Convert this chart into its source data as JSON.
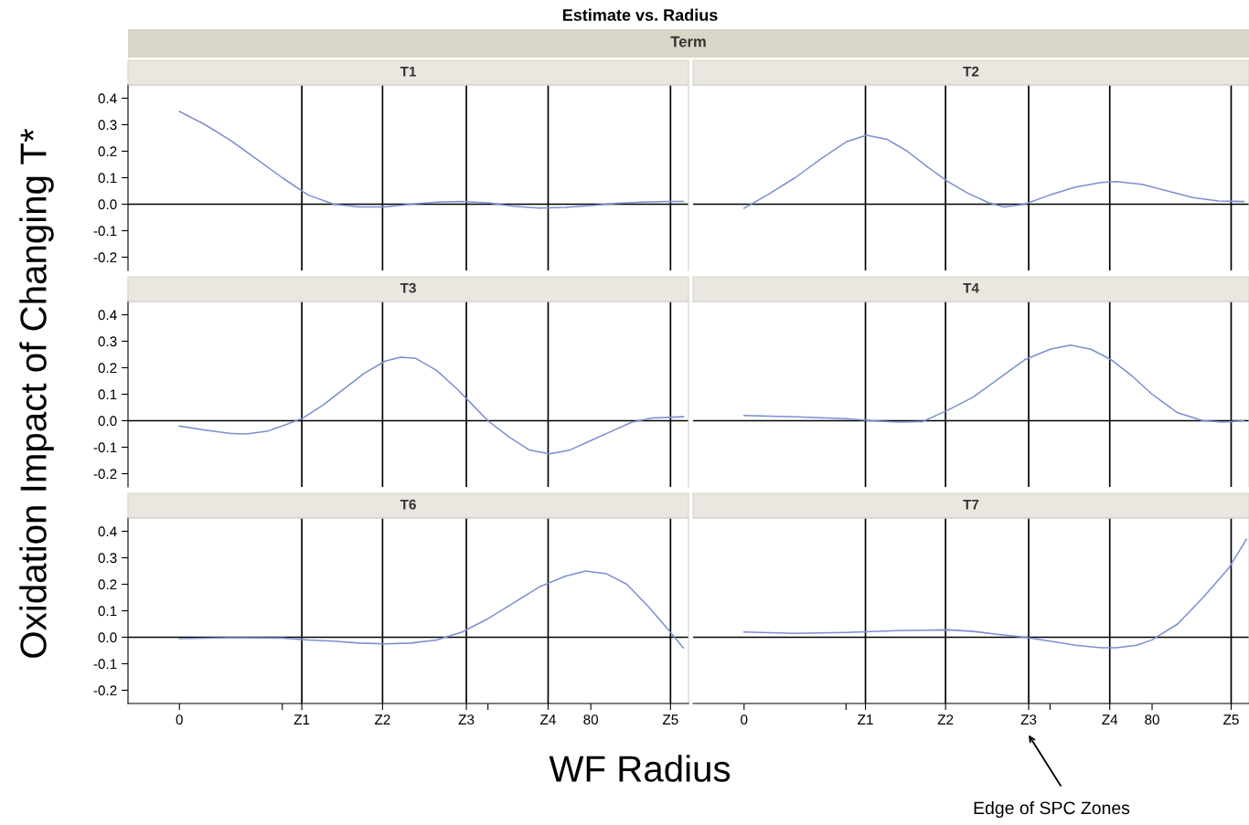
{
  "chart_data": [
    {
      "type": "line",
      "title": "T1",
      "ylabel": "Oxidation Impact of Changing T*",
      "annotations": [
        "Estimate vs. Radius",
        "Term"
      ],
      "tick_labels": "y",
      "x": [
        0,
        5,
        10,
        15,
        20,
        25,
        30,
        35,
        40,
        45,
        50,
        55,
        60,
        65,
        70,
        75,
        80,
        85,
        90,
        95,
        98
      ],
      "series": [
        {
          "color": "#7b8fd0",
          "values": [
            0.35,
            0.3,
            0.24,
            0.17,
            0.1,
            0.035,
            0.0,
            -0.01,
            -0.01,
            0.0,
            0.008,
            0.01,
            0.005,
            -0.008,
            -0.015,
            -0.012,
            -0.005,
            0.003,
            0.008,
            0.01,
            0.01
          ]
        }
      ],
      "xlim": [
        -10,
        99
      ],
      "ylim": [
        -0.25,
        0.45
      ],
      "yticks": [
        {
          "value": -0.2,
          "label": "-0.2"
        },
        {
          "value": -0.1,
          "label": "-0.1"
        },
        {
          "value": 0,
          "label": "0.0"
        },
        0.1,
        0.2,
        0.3,
        0.4
      ],
      "ref_lines": [
        {
          "axis": "x",
          "value": 23.8,
          "color": "#000000"
        },
        {
          "axis": "x",
          "value": 39.5,
          "color": "#000000"
        },
        {
          "axis": "x",
          "value": 55.8,
          "color": "#000000"
        },
        {
          "axis": "x",
          "value": 71.7,
          "color": "#000000"
        },
        {
          "axis": "x",
          "value": 95.5,
          "color": "#000000"
        },
        {
          "axis": "y",
          "value": 0,
          "color": "#000000"
        }
      ]
    },
    {
      "type": "line",
      "title": "T2",
      "tick_labels": false,
      "x": [
        0,
        5,
        10,
        15,
        20,
        24,
        28,
        32,
        36,
        40,
        44,
        48,
        51,
        55,
        60,
        65,
        70,
        73,
        78,
        83,
        88,
        93,
        98
      ],
      "series": [
        {
          "color": "#7b8fd0",
          "values": [
            -0.015,
            0.04,
            0.1,
            0.17,
            0.235,
            0.26,
            0.245,
            0.2,
            0.14,
            0.085,
            0.04,
            0.005,
            -0.01,
            0.0,
            0.035,
            0.065,
            0.082,
            0.085,
            0.075,
            0.05,
            0.025,
            0.012,
            0.01
          ]
        }
      ],
      "xlim": [
        -10,
        99
      ],
      "ylim": [
        -0.25,
        0.45
      ],
      "ref_lines": [
        {
          "axis": "x",
          "value": 23.8,
          "color": "#000000"
        },
        {
          "axis": "x",
          "value": 39.5,
          "color": "#000000"
        },
        {
          "axis": "x",
          "value": 55.8,
          "color": "#000000"
        },
        {
          "axis": "x",
          "value": 71.7,
          "color": "#000000"
        },
        {
          "axis": "x",
          "value": 95.5,
          "color": "#000000"
        },
        {
          "axis": "y",
          "value": 0,
          "color": "#000000"
        }
      ]
    },
    {
      "type": "line",
      "title": "T3",
      "tick_labels": "y",
      "x": [
        0,
        5,
        10,
        13,
        17,
        20,
        24,
        28,
        32,
        36,
        40,
        43,
        46,
        50,
        54,
        57,
        60,
        64,
        68,
        72,
        76,
        80,
        84,
        88,
        92,
        98
      ],
      "series": [
        {
          "color": "#7b8fd0",
          "values": [
            -0.02,
            -0.035,
            -0.048,
            -0.05,
            -0.04,
            -0.02,
            0.01,
            0.06,
            0.12,
            0.18,
            0.225,
            0.24,
            0.235,
            0.19,
            0.12,
            0.06,
            0.0,
            -0.06,
            -0.11,
            -0.125,
            -0.11,
            -0.075,
            -0.04,
            -0.005,
            0.01,
            0.015
          ]
        }
      ],
      "xlim": [
        -10,
        99
      ],
      "ylim": [
        -0.25,
        0.45
      ],
      "yticks": [
        {
          "value": -0.2,
          "label": "-0.2"
        },
        {
          "value": -0.1,
          "label": "-0.1"
        },
        {
          "value": 0,
          "label": "0.0"
        },
        0.1,
        0.2,
        0.3,
        0.4
      ],
      "ref_lines": [
        {
          "axis": "x",
          "value": 23.8,
          "color": "#000000"
        },
        {
          "axis": "x",
          "value": 39.5,
          "color": "#000000"
        },
        {
          "axis": "x",
          "value": 55.8,
          "color": "#000000"
        },
        {
          "axis": "x",
          "value": 71.7,
          "color": "#000000"
        },
        {
          "axis": "x",
          "value": 95.5,
          "color": "#000000"
        },
        {
          "axis": "y",
          "value": 0,
          "color": "#000000"
        }
      ]
    },
    {
      "type": "line",
      "title": "T4",
      "tick_labels": false,
      "x": [
        0,
        10,
        20,
        25,
        30,
        35,
        40,
        45,
        50,
        55,
        60,
        64,
        68,
        72,
        76,
        80,
        85,
        90,
        94,
        98
      ],
      "series": [
        {
          "color": "#7b8fd0",
          "values": [
            0.02,
            0.015,
            0.008,
            0.0,
            -0.005,
            -0.003,
            0.04,
            0.09,
            0.16,
            0.23,
            0.27,
            0.285,
            0.27,
            0.23,
            0.17,
            0.1,
            0.03,
            0.0,
            -0.005,
            0.0
          ]
        }
      ],
      "xlim": [
        -10,
        99
      ],
      "ylim": [
        -0.25,
        0.45
      ],
      "ref_lines": [
        {
          "axis": "x",
          "value": 23.8,
          "color": "#000000"
        },
        {
          "axis": "x",
          "value": 39.5,
          "color": "#000000"
        },
        {
          "axis": "x",
          "value": 55.8,
          "color": "#000000"
        },
        {
          "axis": "x",
          "value": 71.7,
          "color": "#000000"
        },
        {
          "axis": "x",
          "value": 95.5,
          "color": "#000000"
        },
        {
          "axis": "y",
          "value": 0,
          "color": "#000000"
        }
      ]
    },
    {
      "type": "line",
      "title": "T6",
      "xlabel": "WF Radius",
      "x": [
        0,
        10,
        20,
        25,
        30,
        35,
        40,
        45,
        50,
        55,
        60,
        65,
        70,
        75,
        79,
        83,
        87,
        91,
        95,
        98
      ],
      "series": [
        {
          "color": "#7b8fd0",
          "values": [
            -0.005,
            -0.002,
            -0.003,
            -0.01,
            -0.015,
            -0.022,
            -0.025,
            -0.022,
            -0.01,
            0.02,
            0.07,
            0.13,
            0.19,
            0.23,
            0.25,
            0.24,
            0.2,
            0.12,
            0.03,
            -0.04
          ]
        }
      ],
      "xlim": [
        -10,
        99
      ],
      "ylim": [
        -0.25,
        0.45
      ],
      "xticks": [
        0,
        {
          "value": 20,
          "label": null
        },
        {
          "value": 23.8,
          "label": "Z1"
        },
        {
          "value": 39.5,
          "label": "Z2"
        },
        {
          "value": 55.8,
          "label": "Z3"
        },
        {
          "value": 60,
          "label": null
        },
        {
          "value": 71.7,
          "label": "Z4"
        },
        80,
        {
          "value": 95.5,
          "label": "Z5"
        }
      ],
      "yticks": [
        {
          "value": -0.2,
          "label": "-0.2"
        },
        {
          "value": -0.1,
          "label": "-0.1"
        },
        {
          "value": 0,
          "label": "0.0"
        },
        0.1,
        0.2,
        0.3,
        0.4
      ],
      "ref_lines": [
        {
          "axis": "x",
          "value": 23.8,
          "color": "#000000"
        },
        {
          "axis": "x",
          "value": 39.5,
          "color": "#000000"
        },
        {
          "axis": "x",
          "value": 55.8,
          "color": "#000000"
        },
        {
          "axis": "x",
          "value": 71.7,
          "color": "#000000"
        },
        {
          "axis": "x",
          "value": 95.5,
          "color": "#000000"
        },
        {
          "axis": "y",
          "value": 0,
          "color": "#000000"
        }
      ]
    },
    {
      "type": "line",
      "title": "T7",
      "tick_labels": "x",
      "annotations": [
        "Edge of SPC Zones"
      ],
      "x": [
        0,
        10,
        20,
        30,
        40,
        45,
        50,
        55,
        60,
        65,
        70,
        73,
        77,
        80,
        85,
        90,
        95,
        98.5
      ],
      "series": [
        {
          "color": "#7b8fd0",
          "values": [
            0.02,
            0.015,
            0.018,
            0.025,
            0.028,
            0.022,
            0.01,
            0.0,
            -0.015,
            -0.03,
            -0.04,
            -0.04,
            -0.03,
            -0.01,
            0.05,
            0.15,
            0.26,
            0.37
          ]
        }
      ],
      "xlim": [
        -10,
        99
      ],
      "ylim": [
        -0.25,
        0.45
      ],
      "xticks": [
        0,
        {
          "value": 20,
          "label": null
        },
        {
          "value": 23.8,
          "label": "Z1"
        },
        {
          "value": 39.5,
          "label": "Z2"
        },
        {
          "value": 55.8,
          "label": "Z3"
        },
        {
          "value": 60,
          "label": null
        },
        {
          "value": 71.7,
          "label": "Z4"
        },
        80,
        {
          "value": 95.5,
          "label": "Z5"
        }
      ],
      "ref_lines": [
        {
          "axis": "x",
          "value": 23.8,
          "color": "#000000"
        },
        {
          "axis": "x",
          "value": 39.5,
          "color": "#000000"
        },
        {
          "axis": "x",
          "value": 55.8,
          "color": "#000000"
        },
        {
          "axis": "x",
          "value": 71.7,
          "color": "#000000"
        },
        {
          "axis": "x",
          "value": 95.5,
          "color": "#000000"
        },
        {
          "axis": "y",
          "value": 0,
          "color": "#000000"
        }
      ]
    }
  ]
}
